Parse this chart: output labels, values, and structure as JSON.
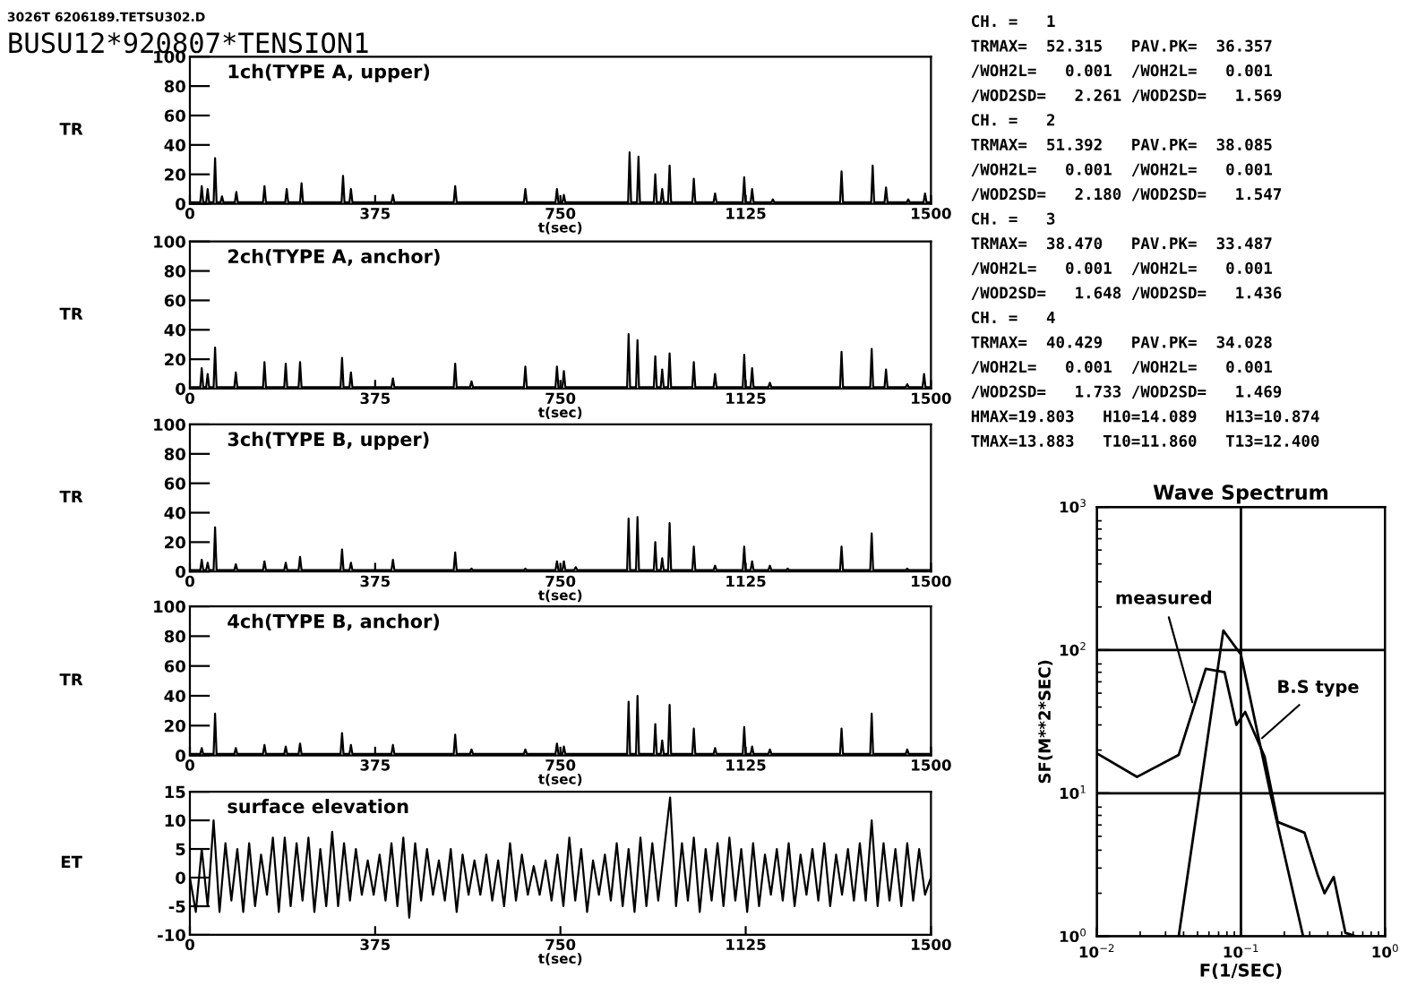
{
  "chart_data": [
    {
      "type": "line",
      "title": "1ch(TYPE A, upper)",
      "xlabel": "t(sec)",
      "ylabel": "TR",
      "xlim": [
        0,
        1500
      ],
      "xticks": [
        0,
        375,
        750,
        1125,
        1500
      ],
      "ylim": [
        0,
        100
      ],
      "yticks": [
        0,
        20,
        40,
        60,
        80,
        100
      ],
      "marker": "none",
      "line_style": "solid",
      "annotations": [
        "3026T 6206189.TETSU302.D",
        "BUSU12*920807*TENSION1",
        "CH. =   1",
        "TRMAX=  52.315   PAV.PK=  36.357",
        "/WOH2L=   0.001  /WOH2L=   0.001",
        "/WOD2SD=   2.261 /WOD2SD=   1.569",
        "CH. =   2",
        "TRMAX=  51.392   PAV.PK=  38.085",
        "/WOH2L=   0.001  /WOH2L=   0.001",
        "/WOD2SD=   2.180 /WOD2SD=   1.547",
        "CH. =   3",
        "TRMAX=  38.470   PAV.PK=  33.487",
        "/WOH2L=   0.001  /WOH2L=   0.001",
        "/WOD2SD=   1.648 /WOD2SD=   1.436",
        "CH. =   4",
        "TRMAX=  40.429   PAV.PK=  34.028",
        "/WOH2L=   0.001  /WOH2L=   0.001",
        "/WOD2SD=   1.733 /WOD2SD=   1.469",
        "HMAX=19.803   H10=14.089   H13=10.874",
        "TMAX=13.883   T10=11.860   T13=12.400"
      ],
      "series": [
        {
          "color": "#000000",
          "x": [
            0,
            21,
            24,
            27,
            33,
            36,
            39,
            48,
            51,
            54,
            62,
            65,
            68,
            91,
            94,
            97,
            148,
            151,
            154,
            193,
            196,
            199,
            223,
            226,
            229,
            307,
            310,
            313,
            323,
            326,
            329,
            408,
            411,
            414,
            534,
            537,
            540,
            676,
            679,
            682,
            740,
            743,
            746,
            754,
            757,
            760,
            887,
            890,
            893,
            905,
            908,
            911,
            939,
            942,
            945,
            953,
            956,
            959,
            968,
            971,
            974,
            1017,
            1020,
            1023,
            1060,
            1063,
            1066,
            1119,
            1122,
            1125,
            1135,
            1138,
            1141,
            1177,
            1180,
            1183,
            1316,
            1319,
            1322,
            1379,
            1382,
            1385,
            1406,
            1409,
            1412,
            1451,
            1454,
            1457,
            1485,
            1488,
            1491,
            1500
          ],
          "values": [
            1,
            1,
            12,
            1,
            1,
            10,
            1,
            1,
            31,
            1,
            1,
            5,
            1,
            1,
            8,
            1,
            1,
            12,
            1,
            1,
            10,
            1,
            1,
            14,
            1,
            1,
            19,
            1,
            1,
            10,
            1,
            1,
            6,
            1,
            1,
            12,
            1,
            1,
            10,
            1,
            1,
            10,
            1,
            1,
            6,
            1,
            1,
            35,
            1,
            1,
            32,
            1,
            1,
            20,
            1,
            1,
            10,
            1,
            1,
            26,
            1,
            1,
            17,
            1,
            1,
            7,
            1,
            1,
            18,
            1,
            1,
            10,
            1,
            1,
            3,
            1,
            1,
            22,
            1,
            1,
            26,
            1,
            1,
            11,
            1,
            1,
            3,
            1,
            1,
            7,
            1,
            1
          ]
        }
      ]
    },
    {
      "type": "line",
      "title": "2ch(TYPE A, anchor)",
      "xlabel": "t(sec)",
      "ylabel": "TR",
      "xlim": [
        0,
        1500
      ],
      "xticks": [
        0,
        375,
        750,
        1125,
        1500
      ],
      "ylim": [
        0,
        100
      ],
      "yticks": [
        0,
        20,
        40,
        60,
        80,
        100
      ],
      "marker": "none",
      "line_style": "solid",
      "series": [
        {
          "color": "#000000",
          "x": [
            0,
            21,
            24,
            27,
            33,
            36,
            39,
            48,
            51,
            54,
            90,
            93,
            96,
            148,
            151,
            154,
            191,
            194,
            197,
            220,
            223,
            226,
            305,
            308,
            311,
            323,
            326,
            329,
            408,
            411,
            414,
            534,
            537,
            540,
            567,
            570,
            573,
            676,
            679,
            682,
            740,
            743,
            746,
            754,
            757,
            760,
            885,
            888,
            891,
            903,
            906,
            909,
            939,
            942,
            945,
            953,
            956,
            959,
            968,
            971,
            974,
            1017,
            1020,
            1023,
            1060,
            1063,
            1066,
            1119,
            1122,
            1125,
            1135,
            1138,
            1141,
            1171,
            1174,
            1177,
            1316,
            1319,
            1322,
            1377,
            1380,
            1383,
            1406,
            1409,
            1412,
            1449,
            1452,
            1455,
            1483,
            1486,
            1489,
            1500
          ],
          "values": [
            1,
            1,
            14,
            1,
            1,
            10,
            1,
            1,
            28,
            1,
            1,
            11,
            1,
            1,
            18,
            1,
            1,
            17,
            1,
            1,
            18,
            1,
            1,
            21,
            1,
            1,
            11,
            1,
            1,
            7,
            1,
            1,
            17,
            1,
            1,
            5,
            1,
            1,
            15,
            1,
            1,
            15,
            1,
            1,
            12,
            1,
            1,
            37,
            1,
            1,
            33,
            1,
            1,
            22,
            1,
            1,
            13,
            1,
            1,
            24,
            1,
            1,
            18,
            1,
            1,
            10,
            1,
            1,
            23,
            1,
            1,
            14,
            1,
            1,
            4,
            1,
            1,
            25,
            1,
            1,
            27,
            1,
            1,
            13,
            1,
            1,
            3,
            1,
            1,
            10,
            1,
            1
          ]
        }
      ]
    },
    {
      "type": "line",
      "title": "3ch(TYPE B, upper)",
      "xlabel": "t(sec)",
      "ylabel": "TR",
      "xlim": [
        0,
        1500
      ],
      "xticks": [
        0,
        375,
        750,
        1125,
        1500
      ],
      "ylim": [
        0,
        100
      ],
      "yticks": [
        0,
        20,
        40,
        60,
        80,
        100
      ],
      "marker": "none",
      "line_style": "solid",
      "series": [
        {
          "color": "#000000",
          "x": [
            0,
            21,
            24,
            27,
            33,
            36,
            39,
            48,
            51,
            54,
            90,
            93,
            96,
            148,
            151,
            154,
            191,
            194,
            197,
            220,
            223,
            226,
            305,
            308,
            311,
            323,
            326,
            329,
            408,
            411,
            414,
            534,
            537,
            540,
            567,
            570,
            573,
            676,
            679,
            682,
            740,
            743,
            746,
            754,
            757,
            760,
            778,
            781,
            784,
            885,
            888,
            891,
            903,
            906,
            909,
            939,
            942,
            945,
            953,
            956,
            959,
            968,
            971,
            974,
            1017,
            1020,
            1023,
            1060,
            1063,
            1066,
            1119,
            1122,
            1125,
            1135,
            1138,
            1141,
            1171,
            1174,
            1177,
            1207,
            1210,
            1213,
            1316,
            1319,
            1322,
            1377,
            1380,
            1383,
            1449,
            1452,
            1455,
            1500
          ],
          "values": [
            1,
            1,
            8,
            1,
            1,
            6,
            1,
            1,
            30,
            1,
            1,
            5,
            1,
            1,
            7,
            1,
            1,
            6,
            1,
            1,
            10,
            1,
            1,
            15,
            1,
            1,
            6,
            1,
            1,
            8,
            1,
            1,
            13,
            1,
            1,
            2,
            1,
            1,
            2,
            1,
            1,
            7,
            1,
            1,
            7,
            1,
            1,
            3,
            1,
            1,
            36,
            1,
            1,
            37,
            1,
            1,
            20,
            1,
            1,
            9,
            1,
            1,
            33,
            1,
            1,
            17,
            1,
            1,
            4,
            1,
            1,
            17,
            1,
            1,
            7,
            1,
            1,
            4,
            1,
            1,
            2,
            1,
            1,
            17,
            1,
            1,
            26,
            1,
            1,
            2,
            1,
            1
          ]
        }
      ]
    },
    {
      "type": "line",
      "title": "4ch(TYPE B, anchor)",
      "xlabel": "t(sec)",
      "ylabel": "TR",
      "xlim": [
        0,
        1500
      ],
      "xticks": [
        0,
        375,
        750,
        1125,
        1500
      ],
      "ylim": [
        0,
        100
      ],
      "yticks": [
        0,
        20,
        40,
        60,
        80,
        100
      ],
      "marker": "none",
      "line_style": "solid",
      "series": [
        {
          "color": "#000000",
          "x": [
            0,
            21,
            24,
            27,
            48,
            51,
            54,
            90,
            93,
            96,
            148,
            151,
            154,
            191,
            194,
            197,
            220,
            223,
            226,
            305,
            308,
            311,
            323,
            326,
            329,
            408,
            411,
            414,
            534,
            537,
            540,
            567,
            570,
            573,
            676,
            679,
            682,
            740,
            743,
            746,
            754,
            757,
            760,
            885,
            888,
            891,
            903,
            906,
            909,
            939,
            942,
            945,
            953,
            956,
            959,
            968,
            971,
            974,
            1017,
            1020,
            1023,
            1060,
            1063,
            1066,
            1119,
            1122,
            1125,
            1135,
            1138,
            1141,
            1171,
            1174,
            1177,
            1316,
            1319,
            1322,
            1377,
            1380,
            1383,
            1449,
            1452,
            1455,
            1500
          ],
          "values": [
            1,
            1,
            5,
            1,
            1,
            28,
            1,
            1,
            5,
            1,
            1,
            7,
            1,
            1,
            6,
            1,
            1,
            8,
            1,
            1,
            15,
            1,
            1,
            7,
            1,
            1,
            7,
            1,
            1,
            14,
            1,
            1,
            4,
            1,
            1,
            4,
            1,
            1,
            8,
            1,
            1,
            6,
            1,
            1,
            36,
            1,
            1,
            40,
            1,
            1,
            21,
            1,
            1,
            10,
            1,
            1,
            34,
            1,
            1,
            18,
            1,
            1,
            5,
            1,
            1,
            19,
            1,
            1,
            6,
            1,
            1,
            4,
            1,
            1,
            18,
            1,
            1,
            28,
            1,
            1,
            4,
            1,
            1
          ]
        }
      ]
    },
    {
      "type": "line",
      "title": "surface elevation",
      "xlabel": "t(sec)",
      "ylabel": "ET",
      "xlim": [
        0,
        1500
      ],
      "xticks": [
        0,
        375,
        750,
        1125,
        1500
      ],
      "ylim": [
        -10,
        15
      ],
      "yticks": [
        -10,
        -5,
        0,
        5,
        10,
        15
      ],
      "marker": "none",
      "line_style": "solid",
      "series": [
        {
          "color": "#000000",
          "x": [
            0,
            12,
            24,
            36,
            48,
            60,
            72,
            84,
            96,
            108,
            120,
            132,
            144,
            156,
            168,
            180,
            192,
            204,
            216,
            228,
            240,
            252,
            264,
            276,
            288,
            300,
            312,
            324,
            336,
            348,
            360,
            372,
            384,
            396,
            408,
            420,
            432,
            444,
            456,
            468,
            480,
            492,
            504,
            516,
            528,
            540,
            552,
            564,
            576,
            588,
            600,
            612,
            624,
            636,
            648,
            660,
            672,
            684,
            696,
            708,
            720,
            732,
            744,
            756,
            768,
            780,
            792,
            804,
            816,
            828,
            840,
            852,
            864,
            876,
            888,
            900,
            912,
            924,
            936,
            948,
            960,
            972,
            984,
            996,
            1008,
            1020,
            1032,
            1044,
            1056,
            1068,
            1080,
            1092,
            1104,
            1116,
            1128,
            1140,
            1152,
            1164,
            1176,
            1188,
            1200,
            1212,
            1224,
            1236,
            1248,
            1260,
            1272,
            1284,
            1296,
            1308,
            1320,
            1332,
            1344,
            1356,
            1368,
            1380,
            1392,
            1404,
            1416,
            1428,
            1440,
            1452,
            1464,
            1476,
            1488,
            1500
          ],
          "values": [
            0,
            -6,
            5,
            -5,
            10,
            -6,
            6,
            -4,
            5,
            -6,
            6,
            -5,
            4,
            -3,
            7,
            -6,
            7,
            -5,
            6,
            -4,
            7,
            -6,
            5,
            -5,
            8,
            -5,
            6,
            -4,
            5,
            -3,
            3,
            -3,
            4,
            -4,
            6,
            -5,
            7,
            -7,
            6,
            -4,
            5,
            -3,
            3,
            -4,
            5,
            -6,
            4,
            -3,
            3,
            -3,
            4,
            -4,
            3,
            -5,
            6,
            -4,
            4,
            -3,
            2,
            -3,
            3,
            -4,
            4,
            -5,
            7,
            -4,
            5,
            -6,
            3,
            -3,
            4,
            -4,
            6,
            -5,
            5,
            -6,
            7,
            -5,
            6,
            -4,
            5,
            14,
            -5,
            6,
            -4,
            7,
            -6,
            5,
            -4,
            6,
            -5,
            7,
            -4,
            5,
            -6,
            6,
            -5,
            4,
            -3,
            5,
            -4,
            6,
            -5,
            4,
            -3,
            5,
            -4,
            6,
            -5,
            4,
            -3,
            5,
            -4,
            6,
            -4,
            10,
            -5,
            6,
            -4,
            5,
            -5,
            6,
            -4,
            5,
            -3,
            0
          ]
        }
      ]
    },
    {
      "type": "line",
      "title": "Wave Spectrum",
      "xlabel": "F(1/SEC)",
      "ylabel": "SF(M**2*SEC)",
      "log": "xy",
      "grid": true,
      "marker": "none",
      "line_style": "solid",
      "xlim": [
        0.01,
        1
      ],
      "xticks": [
        {
          "value": 0.01,
          "label": "10$^{−2}$"
        },
        {
          "value": 0.02,
          "label": null
        },
        {
          "value": 0.03,
          "label": null
        },
        {
          "value": 0.04,
          "label": null
        },
        {
          "value": 0.05,
          "label": null
        },
        {
          "value": 0.06,
          "label": null
        },
        {
          "value": 0.07,
          "label": null
        },
        {
          "value": 0.08,
          "label": null
        },
        {
          "value": 0.09,
          "label": null
        },
        {
          "value": 0.1,
          "label": "10$^{−1}$"
        },
        {
          "value": 0.2,
          "label": null
        },
        {
          "value": 0.3,
          "label": null
        },
        {
          "value": 0.4,
          "label": null
        },
        {
          "value": 0.5,
          "label": null
        },
        {
          "value": 0.6,
          "label": null
        },
        {
          "value": 0.7,
          "label": null
        },
        {
          "value": 0.8,
          "label": null
        },
        {
          "value": 0.9,
          "label": null
        },
        {
          "value": 1,
          "label": "10$^{0}$"
        }
      ],
      "ylim": [
        1,
        1000
      ],
      "yticks": [
        {
          "value": 1,
          "label": "10$^{0}$"
        },
        {
          "value": 2,
          "label": null
        },
        {
          "value": 3,
          "label": null
        },
        {
          "value": 4,
          "label": null
        },
        {
          "value": 5,
          "label": null
        },
        {
          "value": 6,
          "label": null
        },
        {
          "value": 7,
          "label": null
        },
        {
          "value": 8,
          "label": null
        },
        {
          "value": 10,
          "label": "10$^{1}$"
        },
        {
          "value": 20,
          "label": null
        },
        {
          "value": 30,
          "label": null
        },
        {
          "value": 40,
          "label": null
        },
        {
          "value": 50,
          "label": null
        },
        {
          "value": 60,
          "label": null
        },
        {
          "value": 70,
          "label": null
        },
        {
          "value": 80,
          "label": null
        },
        {
          "value": 100,
          "label": "10$^{2}$"
        },
        {
          "value": 200,
          "label": null
        },
        {
          "value": 300,
          "label": null
        },
        {
          "value": 400,
          "label": null
        },
        {
          "value": 500,
          "label": null
        },
        {
          "value": 600,
          "label": null
        },
        {
          "value": 700,
          "label": null
        },
        {
          "value": 800,
          "label": null
        },
        {
          "value": 1000,
          "label": "10$^{3}$"
        }
      ],
      "annotations": [
        {
          "text": "measured",
          "x": 0.047,
          "y": 40
        },
        {
          "text": "B.S type",
          "x": 0.132,
          "y": 23
        }
      ],
      "series": [
        {
          "color": "#000000",
          "x": [
            0.01,
            0.019,
            0.037,
            0.057,
            0.077,
            0.093,
            0.107,
            0.146,
            0.18,
            0.276,
            0.34,
            0.38,
            0.44,
            0.53,
            0.625,
            0.95
          ],
          "values": [
            19,
            13,
            18.5,
            74,
            70,
            30,
            37,
            18,
            6.3,
            5.3,
            2.7,
            2.0,
            2.6,
            1.06,
            1.0,
            1.0
          ]
        },
        {
          "color": "#000000",
          "x": [
            0.037,
            0.0755,
            0.1,
            0.16,
            0.27
          ],
          "values": [
            1,
            137,
            93,
            10,
            1
          ]
        }
      ]
    }
  ]
}
